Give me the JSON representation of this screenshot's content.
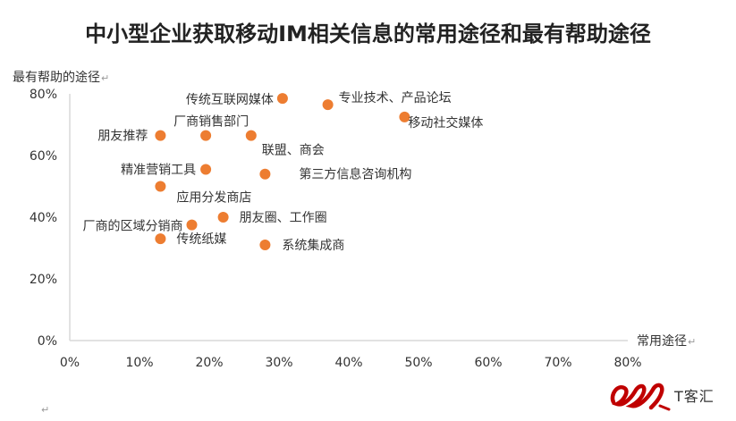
{
  "logo_text": "T客汇",
  "colors": {
    "point": "#ED7D31",
    "axis": "#D9D9D9",
    "logo": "#C00000"
  },
  "para_mark": "↵",
  "chart_data": {
    "type": "scatter",
    "title": "中小型企业获取移动IM相关信息的常用途径和最有帮助途径",
    "xlabel": "常用途径",
    "ylabel": "最有帮助的途径",
    "xlim": [
      0,
      0.8
    ],
    "ylim": [
      0,
      0.8
    ],
    "xticks": [
      "0%",
      "10%",
      "20%",
      "30%",
      "40%",
      "50%",
      "60%",
      "70%",
      "80%"
    ],
    "yticks": [
      "0%",
      "20%",
      "40%",
      "60%",
      "80%"
    ],
    "grid": false,
    "points": [
      {
        "label": "传统互联网媒体",
        "x": 0.305,
        "y": 0.785
      },
      {
        "label": "专业技术、产品论坛",
        "x": 0.37,
        "y": 0.765
      },
      {
        "label": "移动社交媒体",
        "x": 0.48,
        "y": 0.725
      },
      {
        "label": "朋友推荐",
        "x": 0.13,
        "y": 0.665
      },
      {
        "label": "厂商销售部门",
        "x": 0.195,
        "y": 0.665
      },
      {
        "label": "联盟、商会",
        "x": 0.26,
        "y": 0.665
      },
      {
        "label": "精准营销工具",
        "x": 0.195,
        "y": 0.555
      },
      {
        "label": "第三方信息咨询机构",
        "x": 0.28,
        "y": 0.54
      },
      {
        "label": "应用分发商店",
        "x": 0.13,
        "y": 0.5
      },
      {
        "label": "朋友圈、工作圈",
        "x": 0.22,
        "y": 0.4
      },
      {
        "label": "厂商的区域分销商",
        "x": 0.175,
        "y": 0.375
      },
      {
        "label": "传统纸媒",
        "x": 0.13,
        "y": 0.33
      },
      {
        "label": "系统集成商",
        "x": 0.28,
        "y": 0.31
      }
    ]
  }
}
